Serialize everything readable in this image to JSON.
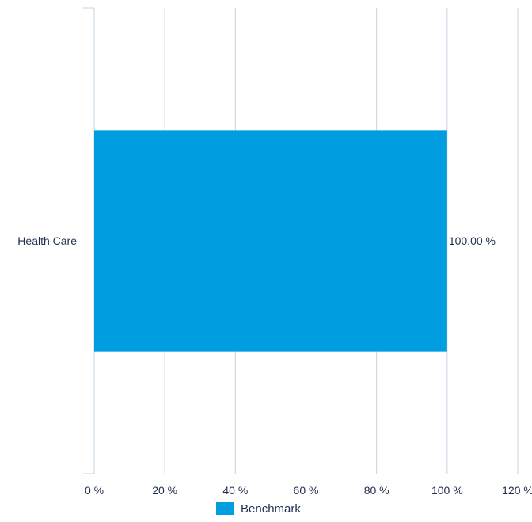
{
  "chart_data": {
    "type": "bar",
    "orientation": "horizontal",
    "categories": [
      "Health Care"
    ],
    "series": [
      {
        "name": "Benchmark",
        "values": [
          100.0
        ],
        "color": "#009ee0"
      }
    ],
    "data_labels": [
      "100.00 %"
    ],
    "xlim": [
      0,
      120
    ],
    "x_ticks": [
      0,
      20,
      40,
      60,
      80,
      100,
      120
    ],
    "x_tick_labels": [
      "0 %",
      "20 %",
      "40 %",
      "60 %",
      "80 %",
      "100 %",
      "120 %"
    ],
    "grid": true,
    "legend_position": "bottom-center"
  }
}
